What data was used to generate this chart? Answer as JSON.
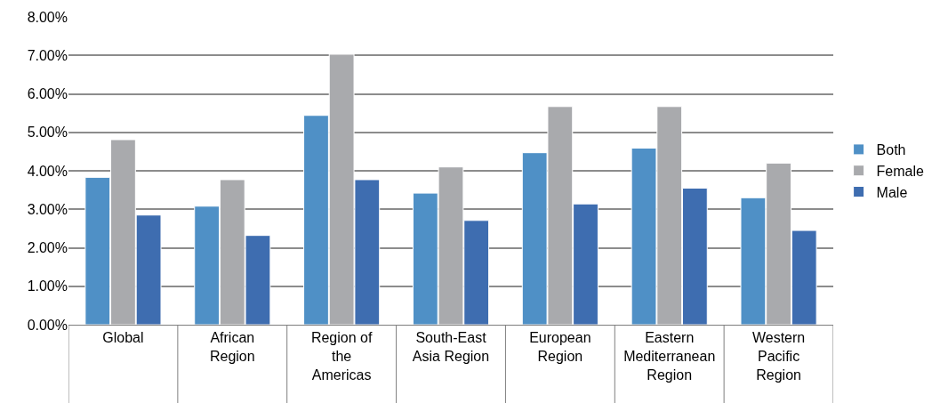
{
  "chart_data": {
    "type": "bar",
    "categories": [
      "Global",
      "African\nRegion",
      "Region of\nthe\nAmericas",
      "South-East\nAsia Region",
      "European\nRegion",
      "Eastern\nMediterranean\nRegion",
      "Western\nPacific\nRegion"
    ],
    "series": [
      {
        "name": "Both",
        "color": "#4f90c6",
        "values": [
          3.83,
          3.08,
          5.44,
          3.42,
          4.47,
          4.59,
          3.3
        ]
      },
      {
        "name": "Female",
        "color": "#a9aaad",
        "values": [
          4.81,
          3.77,
          7.03,
          4.1,
          5.67,
          5.67,
          4.2
        ]
      },
      {
        "name": "Male",
        "color": "#3e6db0",
        "values": [
          2.85,
          2.32,
          3.77,
          2.71,
          3.14,
          3.55,
          2.45
        ]
      }
    ],
    "ylim": [
      0,
      8
    ],
    "yticks": [
      {
        "value": 0,
        "label": "0.00%"
      },
      {
        "value": 1,
        "label": "1.00%"
      },
      {
        "value": 2,
        "label": "2.00%"
      },
      {
        "value": 3,
        "label": "3.00%"
      },
      {
        "value": 4,
        "label": "4.00%"
      },
      {
        "value": 5,
        "label": "5.00%"
      },
      {
        "value": 6,
        "label": "6.00%"
      },
      {
        "value": 7,
        "label": "7.00%"
      },
      {
        "value": 8,
        "label": "8.00%"
      }
    ],
    "grid": "y",
    "legend": "right"
  }
}
